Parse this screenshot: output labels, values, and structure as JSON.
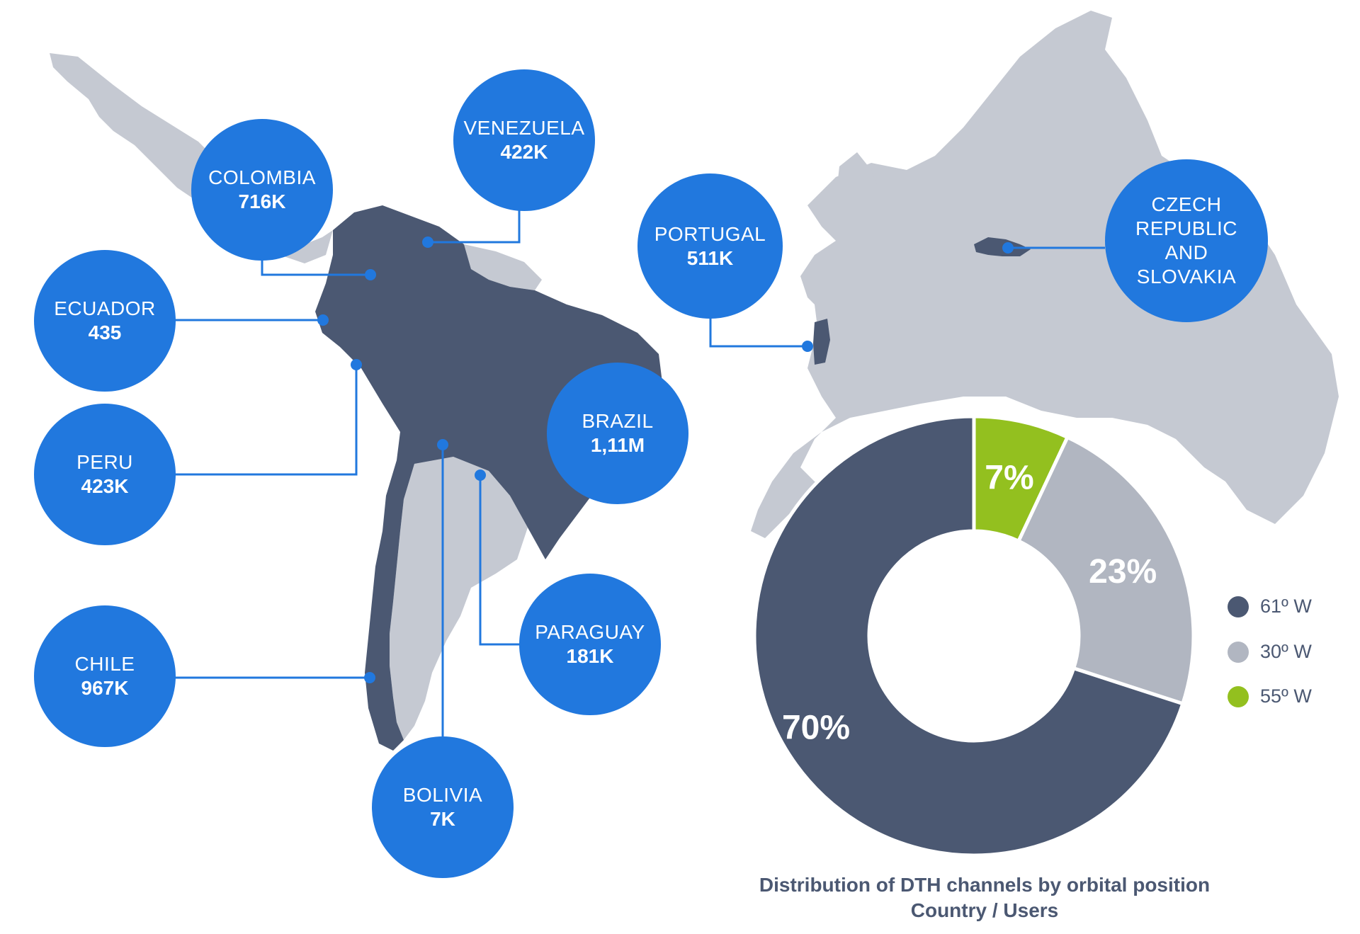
{
  "colors": {
    "bubble": "#2178de",
    "region_highlight": "#4b5872",
    "region_base": "#c5c9d2",
    "slice_61w": "#4b5872",
    "slice_30w": "#b1b6c1",
    "slice_55w": "#93c01f"
  },
  "countries": [
    {
      "id": "colombia",
      "name": "COLOMBIA",
      "value": "716K"
    },
    {
      "id": "venezuela",
      "name": "VENEZUELA",
      "value": "422K"
    },
    {
      "id": "ecuador",
      "name": "ECUADOR",
      "value": "435"
    },
    {
      "id": "peru",
      "name": "PERU",
      "value": "423K"
    },
    {
      "id": "brazil",
      "name": "BRAZIL",
      "value": "1,11M"
    },
    {
      "id": "paraguay",
      "name": "PARAGUAY",
      "value": "181K"
    },
    {
      "id": "chile",
      "name": "CHILE",
      "value": "967K"
    },
    {
      "id": "bolivia",
      "name": "BOLIVIA",
      "value": "7K"
    },
    {
      "id": "portugal",
      "name": "PORTUGAL",
      "value": "511K"
    },
    {
      "id": "czech",
      "name": "CZECH\nREPUBLIC\nAND\nSLOVAKIA",
      "value": ""
    }
  ],
  "chart_data": {
    "type": "pie",
    "donut": true,
    "title": "",
    "categories": [
      "61º W",
      "30º W",
      "55º W"
    ],
    "values": [
      70,
      23,
      7
    ],
    "labels": [
      "70%",
      "23%",
      "7%"
    ],
    "legend_position": "right"
  },
  "caption": {
    "line1": "Distribution of DTH channels by orbital position",
    "line2": "Country / Users"
  }
}
